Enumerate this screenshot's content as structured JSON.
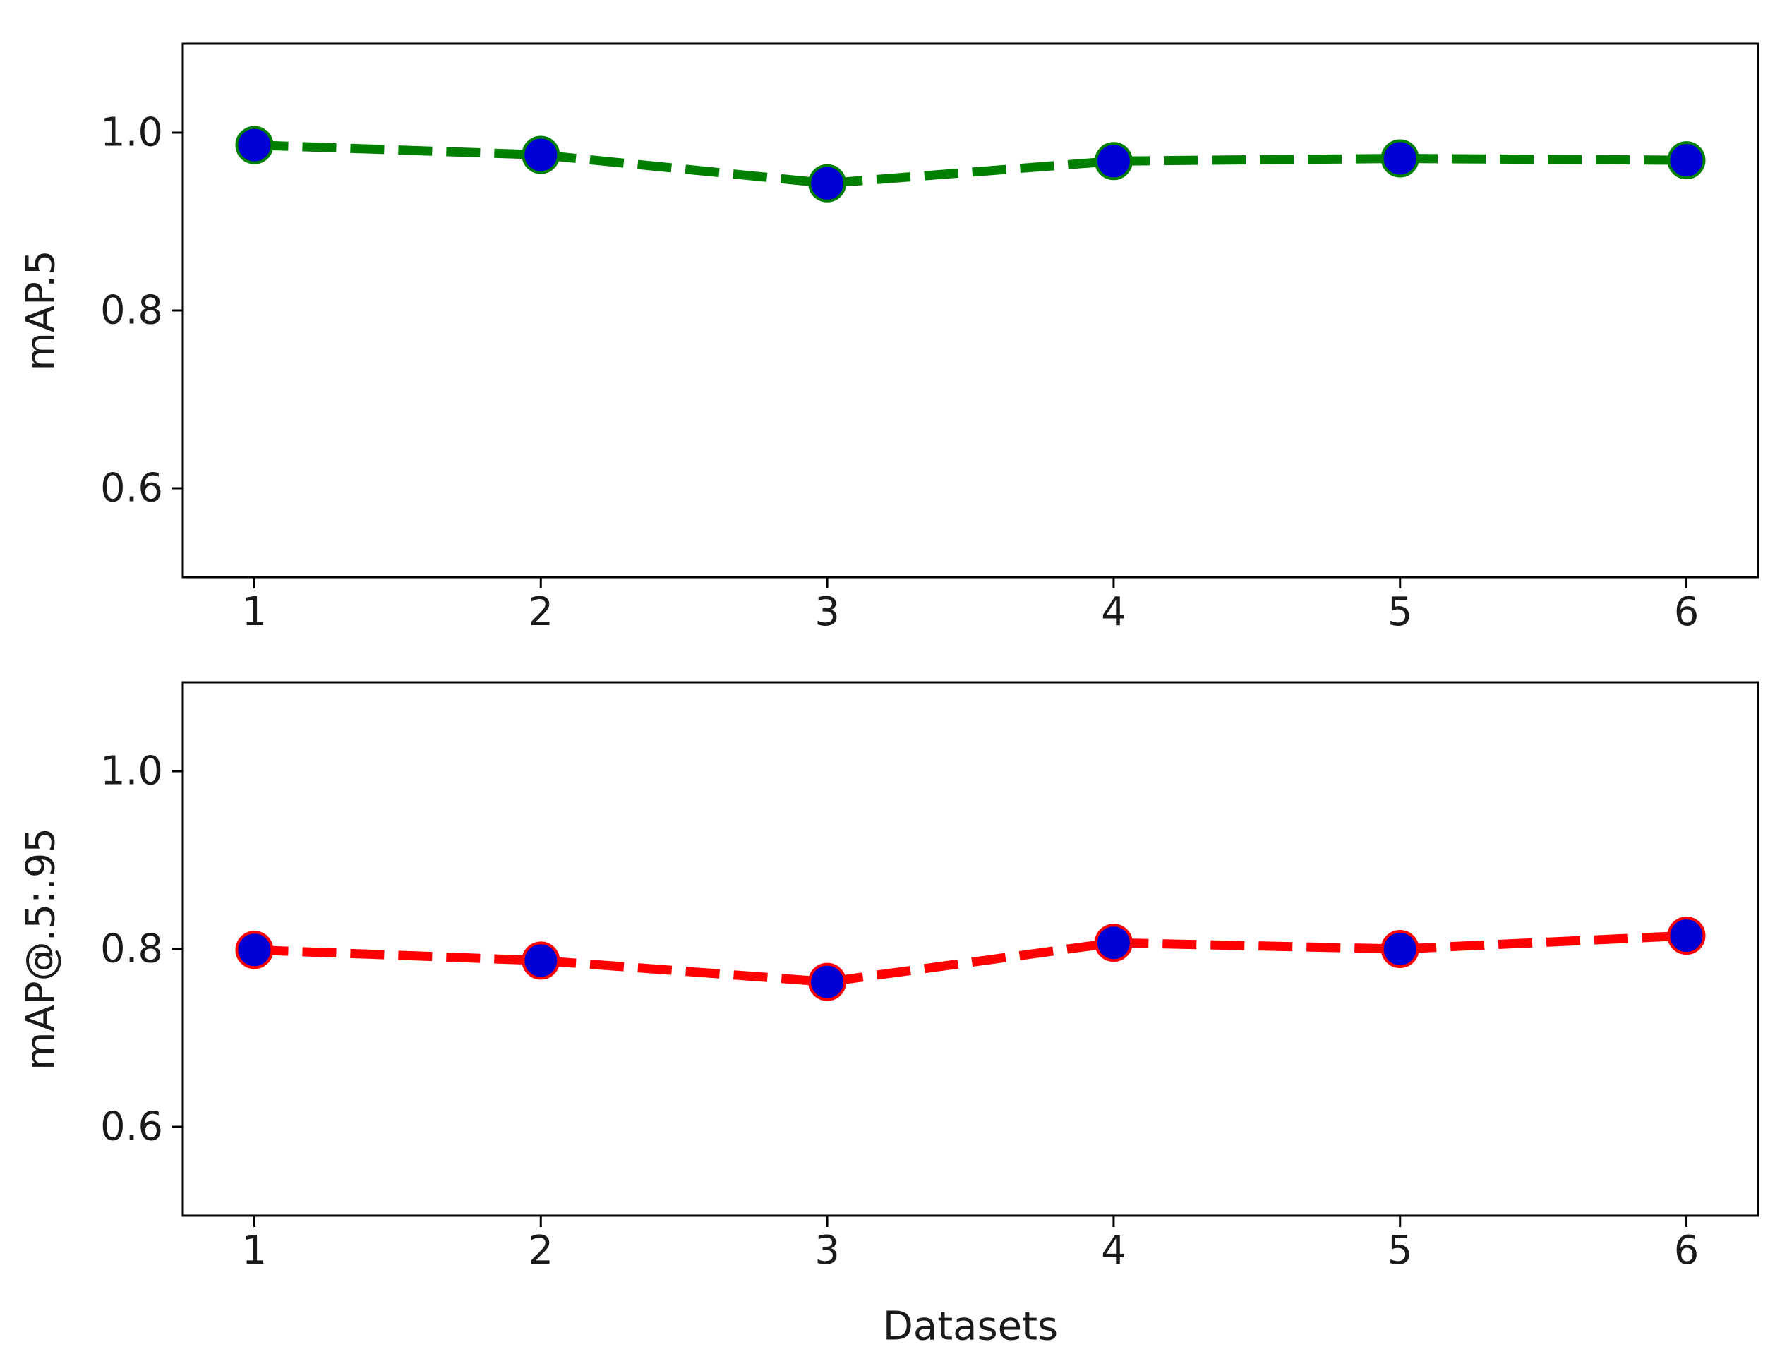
{
  "chart_data": [
    {
      "type": "line",
      "ylabel": "mAP.5",
      "xlabel": "",
      "x": [
        1,
        2,
        3,
        4,
        5,
        6
      ],
      "xticks": [
        "1",
        "2",
        "3",
        "4",
        "5",
        "6"
      ],
      "yticks": [
        "0.6",
        "0.8",
        "1.0"
      ],
      "ylim": [
        0.5,
        1.1
      ],
      "xlim": [
        0.75,
        6.25
      ],
      "grid": false,
      "series": [
        {
          "values": [
            0.986,
            0.975,
            0.943,
            0.968,
            0.971,
            0.969
          ],
          "line_color": "#007f00",
          "line_style": "dashed",
          "marker_color": "#0000d4",
          "marker_edge_color": "#007f00"
        }
      ]
    },
    {
      "type": "line",
      "ylabel": "mAP@.5:.95",
      "xlabel": "Datasets",
      "x": [
        1,
        2,
        3,
        4,
        5,
        6
      ],
      "xticks": [
        "1",
        "2",
        "3",
        "4",
        "5",
        "6"
      ],
      "yticks": [
        "0.6",
        "0.8",
        "1.0"
      ],
      "ylim": [
        0.5,
        1.1
      ],
      "xlim": [
        0.75,
        6.25
      ],
      "grid": false,
      "series": [
        {
          "values": [
            0.799,
            0.787,
            0.763,
            0.807,
            0.8,
            0.815
          ],
          "line_color": "#ff0000",
          "line_style": "dashed",
          "marker_color": "#0000d4",
          "marker_edge_color": "#ff0000"
        }
      ]
    }
  ]
}
